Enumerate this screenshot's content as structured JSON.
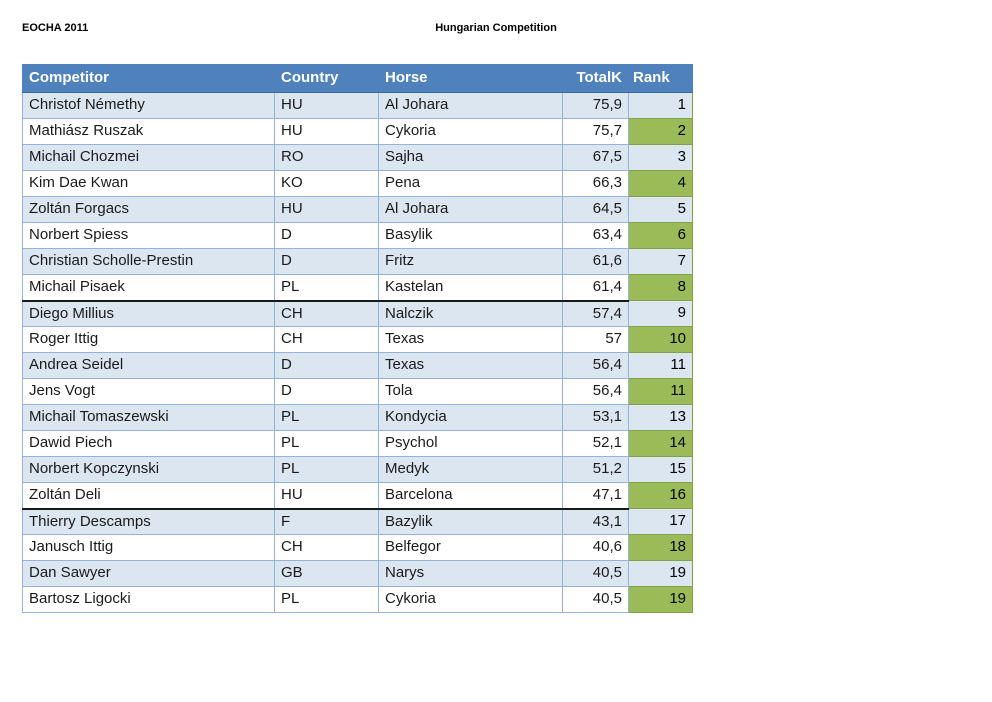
{
  "page": {
    "top_left_label": "EOCHA 2011",
    "title": "Hungarian Competition"
  },
  "table": {
    "columns": [
      "Competitor",
      "Country",
      "Horse",
      "TotalK",
      "Rank"
    ],
    "rows": [
      {
        "competitor": "Christof Némethy",
        "country": "HU",
        "horse": "Al Johara",
        "totalk": "75,9",
        "rank": "1"
      },
      {
        "competitor": "Mathiász Ruszak",
        "country": "HU",
        "horse": "Cykoria",
        "totalk": "75,7",
        "rank": "2"
      },
      {
        "competitor": "Michail Chozmei",
        "country": "RO",
        "horse": "Sajha",
        "totalk": "67,5",
        "rank": "3"
      },
      {
        "competitor": "Kim Dae Kwan",
        "country": "KO",
        "horse": "Pena",
        "totalk": "66,3",
        "rank": "4"
      },
      {
        "competitor": "Zoltán Forgacs",
        "country": "HU",
        "horse": "Al Johara",
        "totalk": "64,5",
        "rank": "5"
      },
      {
        "competitor": "Norbert Spiess",
        "country": "D",
        "horse": "Basylik",
        "totalk": "63,4",
        "rank": "6"
      },
      {
        "competitor": "Christian Scholle-Prestin",
        "country": "D",
        "horse": "Fritz",
        "totalk": "61,6",
        "rank": "7"
      },
      {
        "competitor": "Michail Pisaek",
        "country": "PL",
        "horse": "Kastelan",
        "totalk": "61,4",
        "rank": "8"
      },
      {
        "competitor": "Diego Millius",
        "country": "CH",
        "horse": "Nalczik",
        "totalk": "57,4",
        "rank": "9"
      },
      {
        "competitor": "Roger Ittig",
        "country": "CH",
        "horse": "Texas",
        "totalk": "57",
        "rank": "10"
      },
      {
        "competitor": "Andrea Seidel",
        "country": "D",
        "horse": "Texas",
        "totalk": "56,4",
        "rank": "11"
      },
      {
        "competitor": "Jens Vogt",
        "country": "D",
        "horse": "Tola",
        "totalk": "56,4",
        "rank": "11"
      },
      {
        "competitor": "Michail Tomaszewski",
        "country": "PL",
        "horse": "Kondycia",
        "totalk": "53,1",
        "rank": "13"
      },
      {
        "competitor": "Dawid Piech",
        "country": "PL",
        "horse": "Psychol",
        "totalk": "52,1",
        "rank": "14"
      },
      {
        "competitor": "Norbert Kopczynski",
        "country": "PL",
        "horse": "Medyk",
        "totalk": "51,2",
        "rank": "15"
      },
      {
        "competitor": "Zoltán Deli",
        "country": "HU",
        "horse": "Barcelona",
        "totalk": "47,1",
        "rank": "16"
      },
      {
        "competitor": "Thierry Descamps",
        "country": "F",
        "horse": "Bazylik",
        "totalk": "43,1",
        "rank": "17"
      },
      {
        "competitor": "Janusch Ittig",
        "country": "CH",
        "horse": "Belfegor",
        "totalk": "40,6",
        "rank": "18"
      },
      {
        "competitor": "Dan Sawyer",
        "country": "GB",
        "horse": "Narys",
        "totalk": "40,5",
        "rank": "19"
      },
      {
        "competitor": "Bartosz Ligocki",
        "country": "PL",
        "horse": "Cykoria",
        "totalk": "40,5",
        "rank": "19"
      }
    ],
    "cutoff_after_rows": [
      8,
      16
    ],
    "colors": {
      "header_bg": "#4F81BD",
      "row_alt_bg": "#DCE6F1",
      "rank_bg": "#9BBB59",
      "border": "#95B3D7"
    }
  }
}
